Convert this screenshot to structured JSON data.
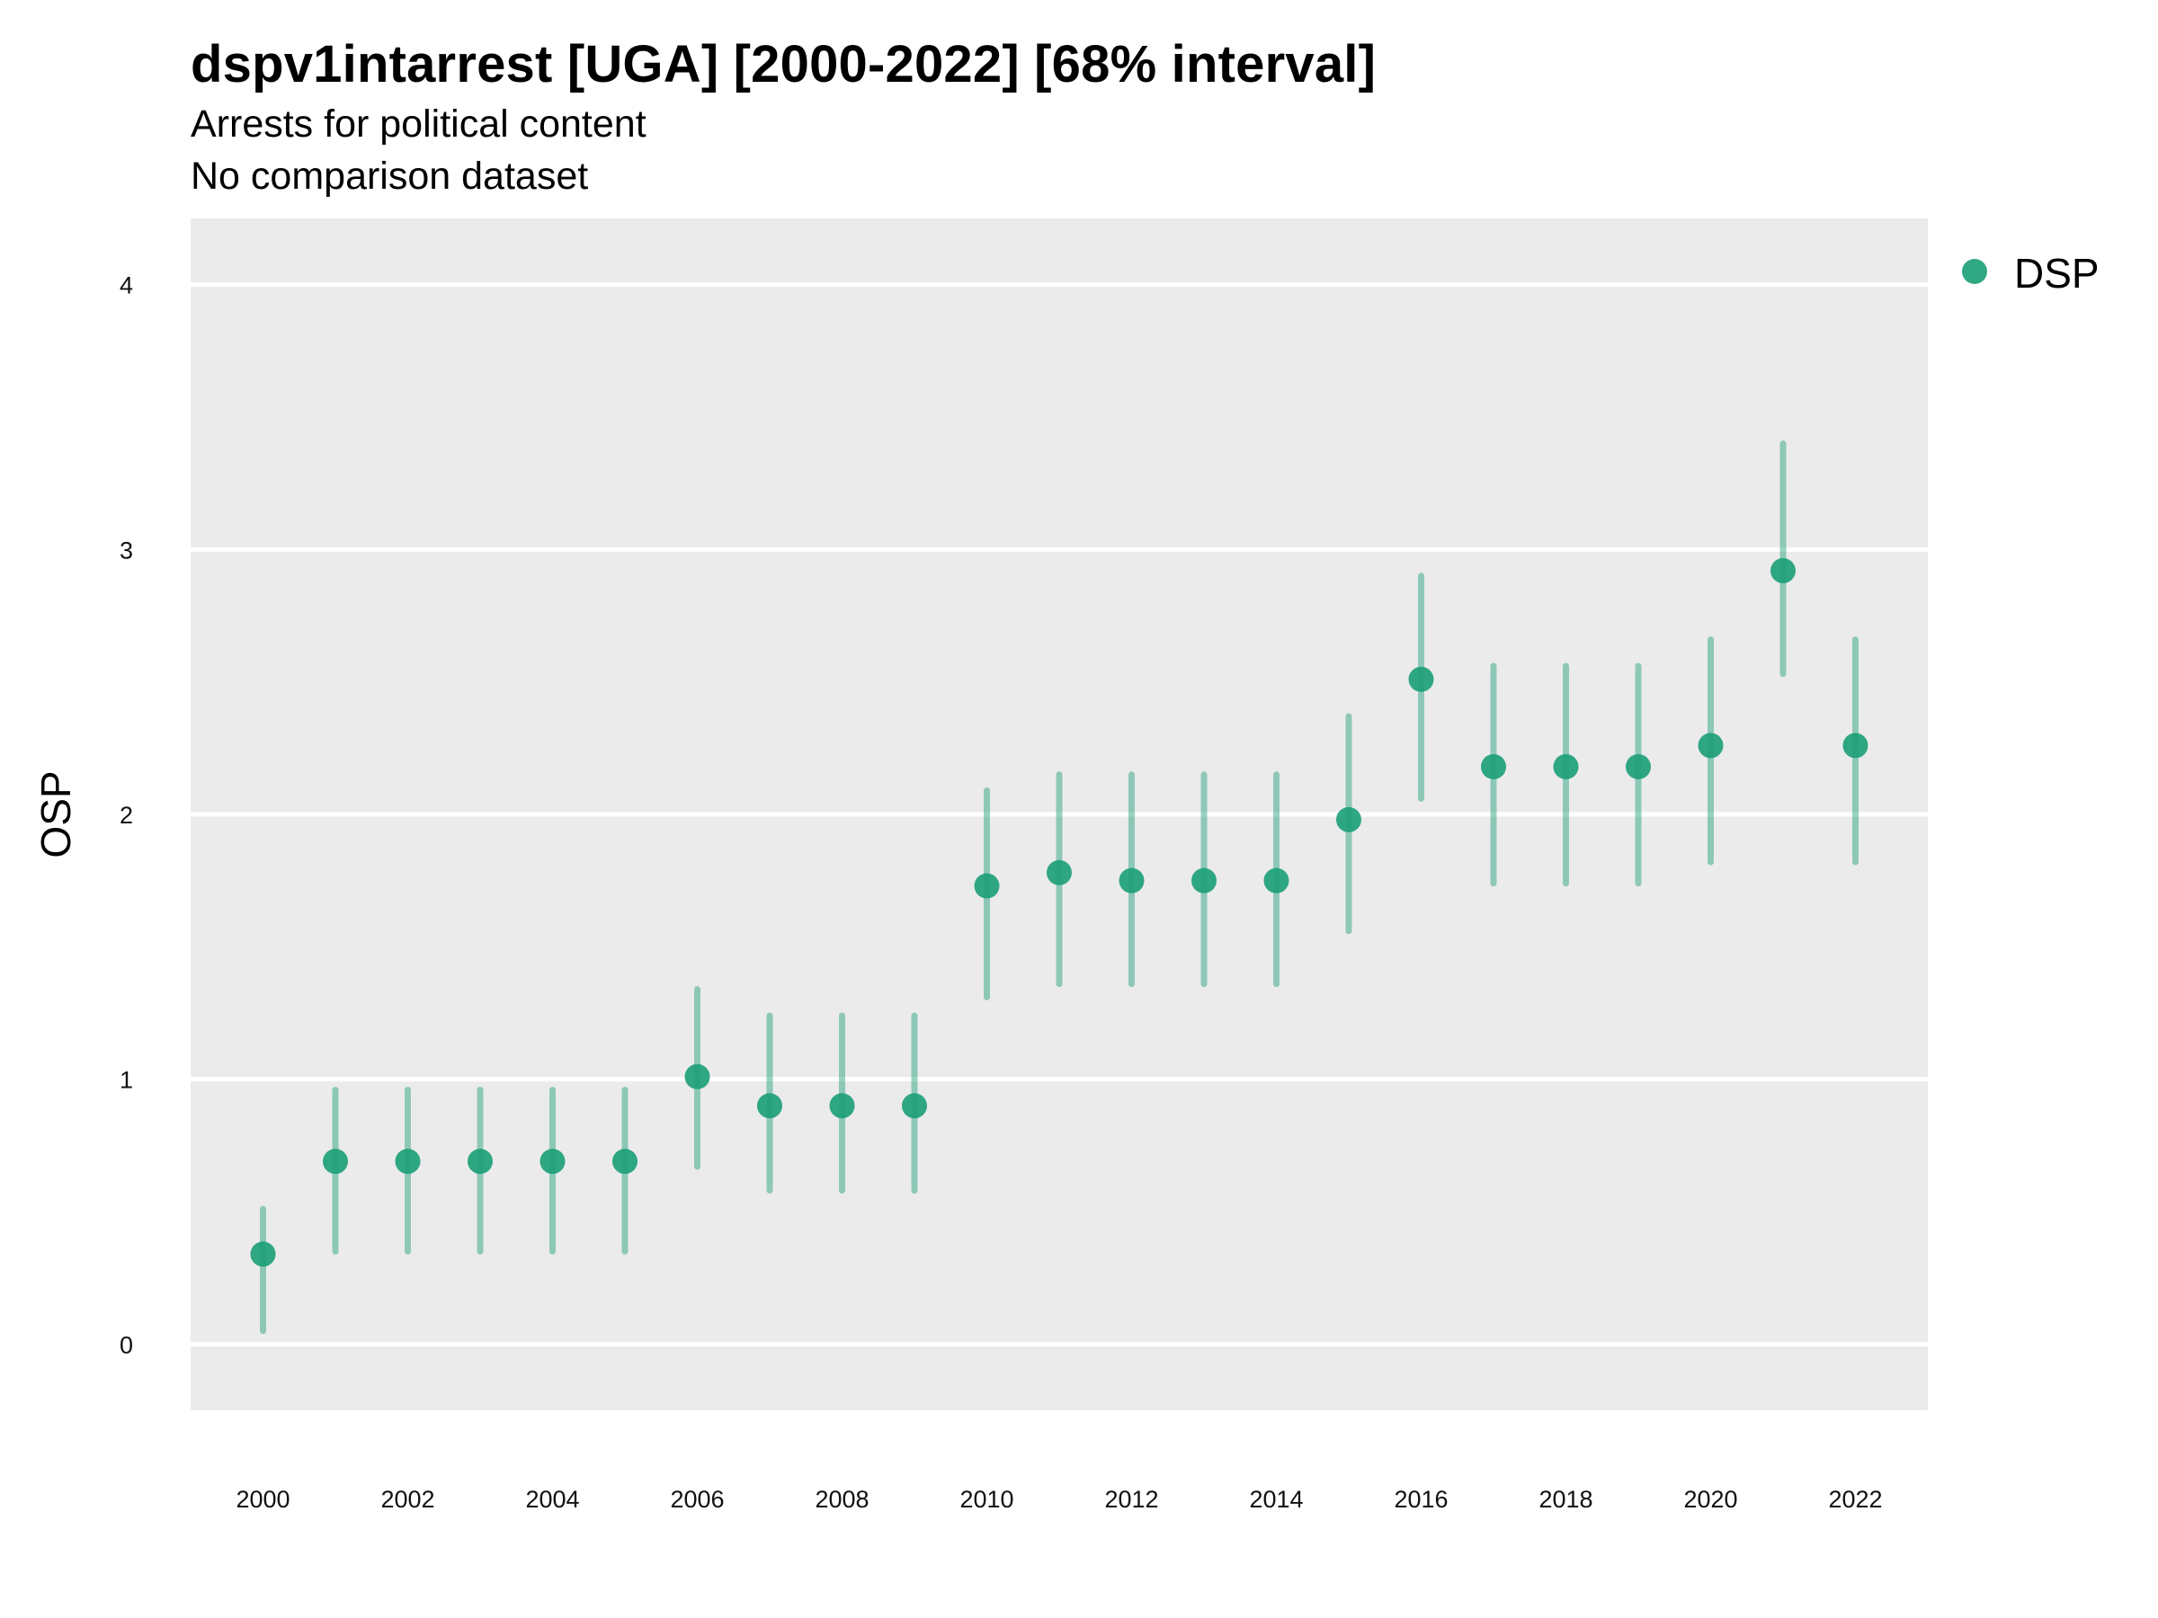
{
  "title": "dspv1intarrest [UGA] [2000-2022] [68% interval]",
  "subtitle_line1": "Arrests for political content",
  "subtitle_line2": "No comparison dataset",
  "colors": {
    "panel_background": "#ebebeb",
    "grid": "#ffffff",
    "point": "#1b9e77",
    "interval": "#1b9e77"
  },
  "chart_data": {
    "type": "scatter",
    "xlabel": "",
    "ylabel": "OSP",
    "ylim": [
      -0.25,
      4.25
    ],
    "xlim": [
      1999.0,
      2023.0
    ],
    "y_ticks": [
      0,
      1,
      2,
      3,
      4
    ],
    "x_ticks": [
      2000,
      2002,
      2004,
      2006,
      2008,
      2010,
      2012,
      2014,
      2016,
      2018,
      2020,
      2022
    ],
    "grid": "horizontal major only",
    "legend_position": "right",
    "legend": [
      "DSP"
    ],
    "series": [
      {
        "name": "DSP",
        "x": [
          2000,
          2001,
          2002,
          2003,
          2004,
          2005,
          2006,
          2007,
          2008,
          2009,
          2010,
          2011,
          2012,
          2013,
          2014,
          2015,
          2016,
          2017,
          2018,
          2019,
          2020,
          2021,
          2022
        ],
        "y": [
          0.34,
          0.69,
          0.69,
          0.69,
          0.69,
          0.69,
          1.01,
          0.9,
          0.9,
          0.9,
          1.73,
          1.78,
          1.75,
          1.75,
          1.75,
          1.98,
          2.51,
          2.18,
          2.18,
          2.18,
          2.26,
          2.92,
          2.26
        ],
        "lower": [
          0.05,
          0.35,
          0.35,
          0.35,
          0.35,
          0.35,
          0.67,
          0.58,
          0.58,
          0.58,
          1.31,
          1.36,
          1.36,
          1.36,
          1.36,
          1.56,
          2.06,
          1.74,
          1.74,
          1.74,
          1.82,
          2.53,
          1.82
        ],
        "upper": [
          0.51,
          0.96,
          0.96,
          0.96,
          0.96,
          0.96,
          1.34,
          1.24,
          1.24,
          1.24,
          2.09,
          2.15,
          2.15,
          2.15,
          2.15,
          2.37,
          2.9,
          2.56,
          2.56,
          2.56,
          2.66,
          3.4,
          2.66
        ]
      }
    ]
  }
}
